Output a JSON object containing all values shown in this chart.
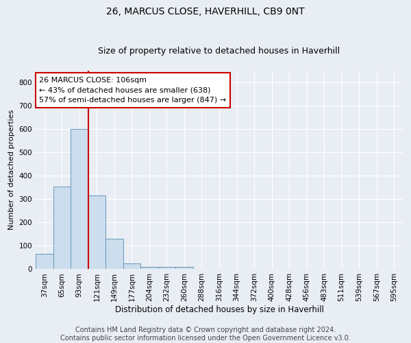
{
  "title1": "26, MARCUS CLOSE, HAVERHILL, CB9 0NT",
  "title2": "Size of property relative to detached houses in Haverhill",
  "xlabel": "Distribution of detached houses by size in Haverhill",
  "ylabel": "Number of detached properties",
  "bar_labels": [
    "37sqm",
    "65sqm",
    "93sqm",
    "121sqm",
    "149sqm",
    "177sqm",
    "204sqm",
    "232sqm",
    "260sqm",
    "288sqm",
    "316sqm",
    "344sqm",
    "372sqm",
    "400sqm",
    "428sqm",
    "456sqm",
    "483sqm",
    "511sqm",
    "539sqm",
    "567sqm",
    "595sqm"
  ],
  "bar_values": [
    65,
    355,
    600,
    315,
    130,
    25,
    10,
    10,
    10,
    0,
    0,
    0,
    0,
    0,
    0,
    0,
    0,
    0,
    0,
    0,
    0
  ],
  "bar_color": "#ccdded",
  "bar_edge_color": "#6699bb",
  "vline_color": "#cc0000",
  "annotation_text": "26 MARCUS CLOSE: 106sqm\n← 43% of detached houses are smaller (638)\n57% of semi-detached houses are larger (847) →",
  "annotation_box_facecolor": "#ffffff",
  "annotation_box_edgecolor": "#cc0000",
  "ylim": [
    0,
    850
  ],
  "yticks": [
    0,
    100,
    200,
    300,
    400,
    500,
    600,
    700,
    800
  ],
  "footer1": "Contains HM Land Registry data © Crown copyright and database right 2024.",
  "footer2": "Contains public sector information licensed under the Open Government Licence v3.0.",
  "bg_color": "#e8eef4",
  "grid_color": "#ffffff",
  "title1_fontsize": 10,
  "title2_fontsize": 9,
  "xlabel_fontsize": 8.5,
  "ylabel_fontsize": 8,
  "tick_fontsize": 7.5,
  "annot_fontsize": 8,
  "footer_fontsize": 7
}
